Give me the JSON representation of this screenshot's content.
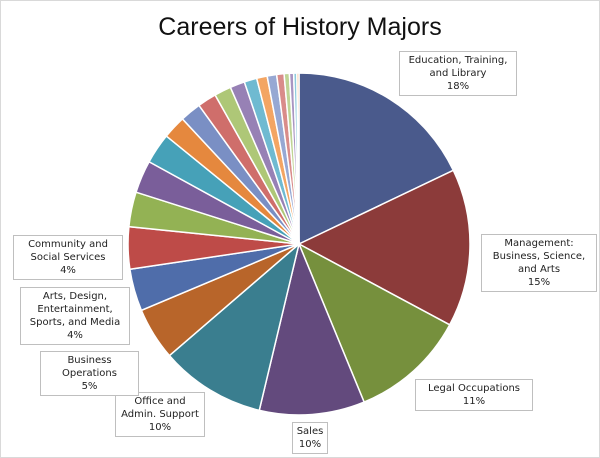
{
  "chart_data": {
    "type": "pie",
    "title": "Careers of History Majors",
    "slices": [
      {
        "name": "Education, Training, and Library",
        "value": 18,
        "label": "18%",
        "color": "#4A5A8C"
      },
      {
        "name": "Management: Business, Science, and Arts",
        "value": 15,
        "label": "15%",
        "color": "#8C3B3A"
      },
      {
        "name": "Legal Occupations",
        "value": 11,
        "label": "11%",
        "color": "#76903D"
      },
      {
        "name": "Sales",
        "value": 10,
        "label": "10%",
        "color": "#634A7D"
      },
      {
        "name": "Office and Admin. Support",
        "value": 10,
        "label": "10%",
        "color": "#3A7E8F"
      },
      {
        "name": "Business Operations",
        "value": 5,
        "label": "5%",
        "color": "#B8652A"
      },
      {
        "name": "Arts, Design, Entertainment, Sports, and Media",
        "value": 4,
        "label": "4%",
        "color": "#4F6DAA"
      },
      {
        "name": "Community and Social Services",
        "value": 4,
        "label": "4%",
        "color": "#BE4B48"
      },
      {
        "name": "",
        "value": 3.3,
        "color": "#93B254"
      },
      {
        "name": "",
        "value": 3.1,
        "color": "#7A5E9A"
      },
      {
        "name": "",
        "value": 2.9,
        "color": "#46A1B8"
      },
      {
        "name": "",
        "value": 2.2,
        "color": "#E5883E"
      },
      {
        "name": "",
        "value": 2.0,
        "color": "#7A8FC4"
      },
      {
        "name": "",
        "value": 1.8,
        "color": "#CF6E6B"
      },
      {
        "name": "",
        "value": 1.6,
        "color": "#AEC777"
      },
      {
        "name": "",
        "value": 1.4,
        "color": "#9781B5"
      },
      {
        "name": "",
        "value": 1.2,
        "color": "#6FBAD1"
      },
      {
        "name": "",
        "value": 1.0,
        "color": "#F3A563"
      },
      {
        "name": "",
        "value": 0.9,
        "color": "#97A8D3"
      },
      {
        "name": "",
        "value": 0.7,
        "color": "#D98C8A"
      },
      {
        "name": "",
        "value": 0.5,
        "color": "#BFD495"
      },
      {
        "name": "",
        "value": 0.4,
        "color": "#A995C2"
      },
      {
        "name": "",
        "value": 0.3,
        "color": "#8ECBDD"
      },
      {
        "name": "",
        "value": 0.2,
        "color": "#F6B982"
      }
    ],
    "legend": "none",
    "labels": "callout boxes with category name and percent"
  }
}
